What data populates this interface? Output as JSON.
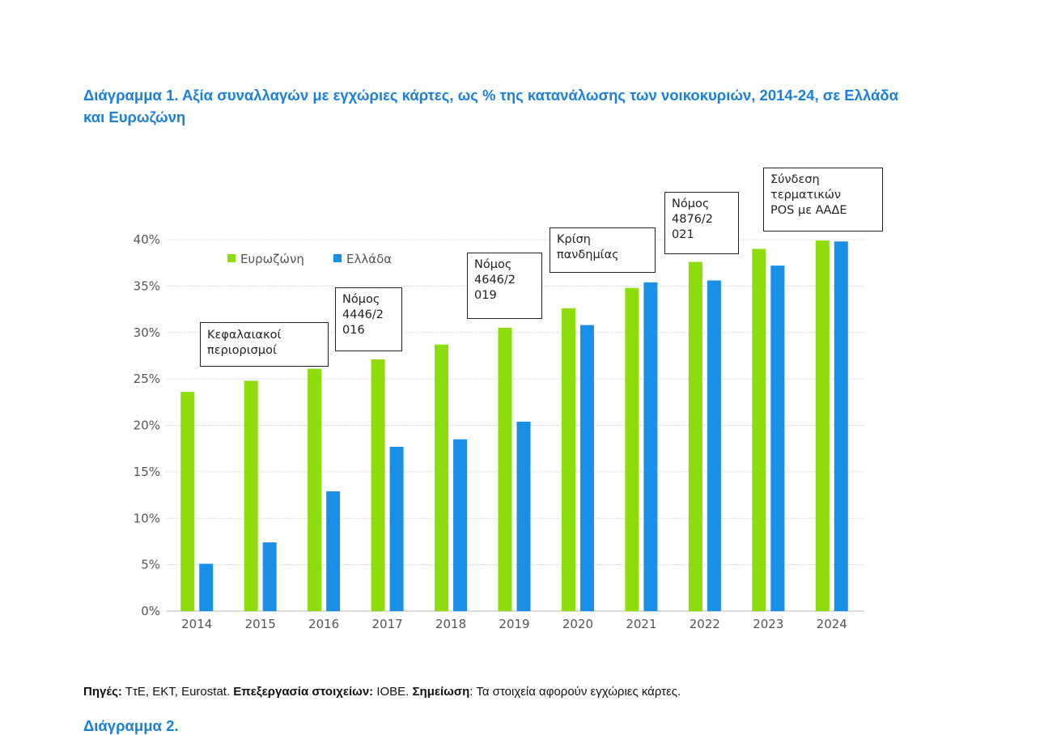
{
  "title": "Διάγραμμα 1. Αξία συναλλαγών με εγχώριες κάρτες, ως % της κατανάλωσης των νοικοκυριών, 2014-24, σε Ελλάδα και Ευρωζώνη",
  "chart_data": {
    "type": "bar",
    "categories": [
      "2014",
      "2015",
      "2016",
      "2017",
      "2018",
      "2019",
      "2020",
      "2021",
      "2022",
      "2023",
      "2024"
    ],
    "series": [
      {
        "name": "Ευρωζώνη",
        "color": "#8ddc0c",
        "values": [
          23.6,
          24.8,
          26.1,
          27.1,
          28.7,
          30.5,
          32.6,
          34.8,
          37.6,
          39.0,
          39.9
        ]
      },
      {
        "name": "Ελλάδα",
        "color": "#1a8fe6",
        "values": [
          5.1,
          7.4,
          12.9,
          17.7,
          18.5,
          20.4,
          30.8,
          35.4,
          35.6,
          37.2,
          39.8
        ]
      }
    ],
    "ylim": [
      0,
      40
    ],
    "yticks": [
      "0%",
      "5%",
      "10%",
      "15%",
      "20%",
      "25%",
      "30%",
      "35%",
      "40%"
    ],
    "grid": true,
    "legend_position": "top-left",
    "annotations": [
      {
        "lines": [
          "Κεφαλαιακοί",
          "περιορισμοί"
        ]
      },
      {
        "lines": [
          "Νόμος",
          "4446/2",
          "016"
        ]
      },
      {
        "lines": [
          "Νόμος",
          "4646/2",
          "019"
        ]
      },
      {
        "lines": [
          "Κρίση",
          "πανδημίας"
        ]
      },
      {
        "lines": [
          "Νόμος",
          "4876/2",
          "021"
        ]
      },
      {
        "lines": [
          "Σύνδεση",
          "τερματικών",
          "POS με ΑΑΔΕ"
        ]
      }
    ]
  },
  "note": {
    "sources_label": "Πηγές:",
    "sources": " ΤτΕ, ΕΚΤ, Eurostat. ",
    "processing_label": "Επεξεργασία στοιχείων:",
    "processing": " ΙΟΒΕ. ",
    "remark_label": "Σημείωση",
    "remark": ": Τα στοιχεία αφορούν εγχώριες κάρτες."
  },
  "next_title": "Διάγραμμα 2."
}
